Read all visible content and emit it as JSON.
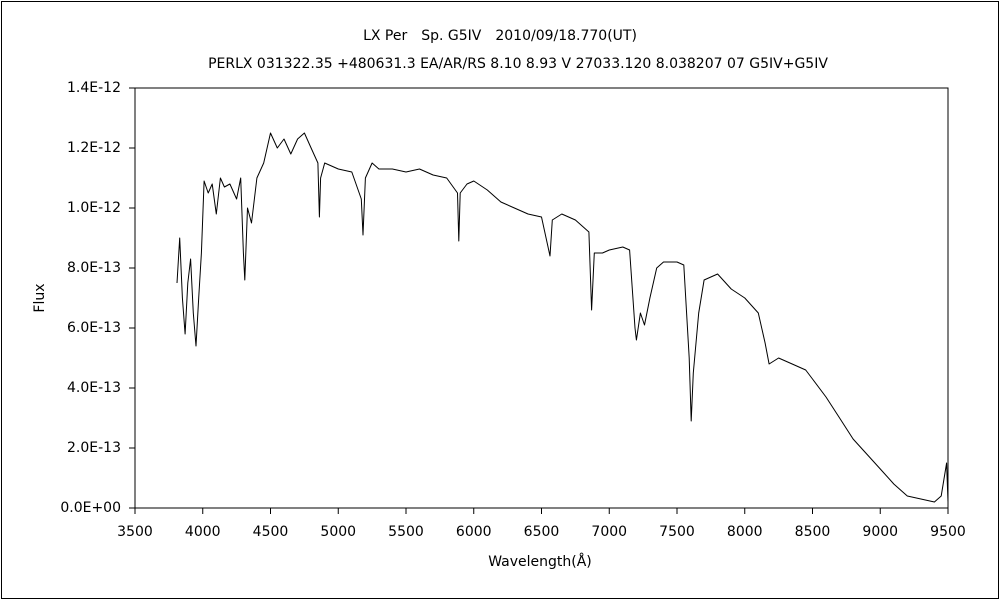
{
  "chart_data": {
    "type": "line",
    "title": "LX Per　Sp. G5IV　2010/09/18.770(UT)",
    "subtitle": "PERLX 031322.35 +480631.3 EA/AR/RS 8.10 8.93 V 27033.120 8.038207 07 G5IV+G5IV",
    "x_label": "Wavelength(Å)",
    "y_label": "Flux",
    "xlim": [
      3500,
      9500
    ],
    "xticks": [
      3500,
      4000,
      4500,
      5000,
      5500,
      6000,
      6500,
      7000,
      7500,
      8000,
      8500,
      9000,
      9500
    ],
    "ylim": [
      0,
      1.4e-12
    ],
    "yticks": [
      {
        "value": 0,
        "label": "0.0E+00"
      },
      {
        "value": 2e-13,
        "label": "2.0E-13"
      },
      {
        "value": 4e-13,
        "label": "4.0E-13"
      },
      {
        "value": 6e-13,
        "label": "6.0E-13"
      },
      {
        "value": 8e-13,
        "label": "8.0E-13"
      },
      {
        "value": 1e-12,
        "label": "1.0E-12"
      },
      {
        "value": 1.2e-12,
        "label": "1.2E-12"
      },
      {
        "value": 1.4e-12,
        "label": "1.4E-12"
      }
    ],
    "grid": false,
    "series": [
      {
        "color": "#000000",
        "x": [
          3810,
          3830,
          3850,
          3870,
          3890,
          3910,
          3930,
          3950,
          3970,
          3990,
          4010,
          4040,
          4070,
          4100,
          4130,
          4160,
          4200,
          4250,
          4280,
          4300,
          4310,
          4330,
          4360,
          4400,
          4450,
          4500,
          4550,
          4600,
          4650,
          4700,
          4750,
          4800,
          4850,
          4861,
          4870,
          4900,
          5000,
          5100,
          5170,
          5183,
          5200,
          5250,
          5300,
          5400,
          5500,
          5600,
          5700,
          5800,
          5880,
          5890,
          5900,
          5950,
          6000,
          6100,
          6200,
          6300,
          6400,
          6500,
          6563,
          6580,
          6650,
          6750,
          6850,
          6870,
          6890,
          6950,
          7000,
          7100,
          7150,
          7190,
          7200,
          7230,
          7260,
          7300,
          7350,
          7400,
          7500,
          7550,
          7590,
          7605,
          7620,
          7660,
          7700,
          7800,
          7900,
          8000,
          8100,
          8150,
          8180,
          8250,
          8350,
          8450,
          8500,
          8600,
          8700,
          8800,
          8900,
          9000,
          9100,
          9200,
          9300,
          9400,
          9450,
          9490,
          9500
        ],
        "values": [
          7.5e-13,
          9e-13,
          7e-13,
          5.8e-13,
          7.5e-13,
          8.3e-13,
          6.5e-13,
          5.4e-13,
          7e-13,
          8.5e-13,
          1.09e-12,
          1.05e-12,
          1.08e-12,
          9.8e-13,
          1.1e-12,
          1.07e-12,
          1.08e-12,
          1.03e-12,
          1.1e-12,
          8.5e-13,
          7.6e-13,
          1e-12,
          9.5e-13,
          1.1e-12,
          1.15e-12,
          1.25e-12,
          1.2e-12,
          1.23e-12,
          1.18e-12,
          1.23e-12,
          1.25e-12,
          1.2e-12,
          1.15e-12,
          9.7e-13,
          1.1e-12,
          1.15e-12,
          1.13e-12,
          1.12e-12,
          1.03e-12,
          9.1e-13,
          1.1e-12,
          1.15e-12,
          1.13e-12,
          1.13e-12,
          1.12e-12,
          1.13e-12,
          1.11e-12,
          1.1e-12,
          1.05e-12,
          8.9e-13,
          1.05e-12,
          1.08e-12,
          1.09e-12,
          1.06e-12,
          1.02e-12,
          1e-12,
          9.8e-13,
          9.7e-13,
          8.4e-13,
          9.6e-13,
          9.8e-13,
          9.6e-13,
          9.2e-13,
          6.6e-13,
          8.5e-13,
          8.5e-13,
          8.6e-13,
          8.7e-13,
          8.6e-13,
          6e-13,
          5.6e-13,
          6.5e-13,
          6.1e-13,
          7e-13,
          8e-13,
          8.2e-13,
          8.2e-13,
          8.1e-13,
          5e-13,
          2.9e-13,
          4.5e-13,
          6.5e-13,
          7.6e-13,
          7.8e-13,
          7.3e-13,
          7e-13,
          6.5e-13,
          5.5e-13,
          4.8e-13,
          5e-13,
          4.8e-13,
          4.6e-13,
          4.3e-13,
          3.7e-13,
          3e-13,
          2.3e-13,
          1.8e-13,
          1.3e-13,
          8e-14,
          4e-14,
          3e-14,
          2e-14,
          4e-14,
          1.5e-13,
          2e-14
        ]
      }
    ]
  }
}
